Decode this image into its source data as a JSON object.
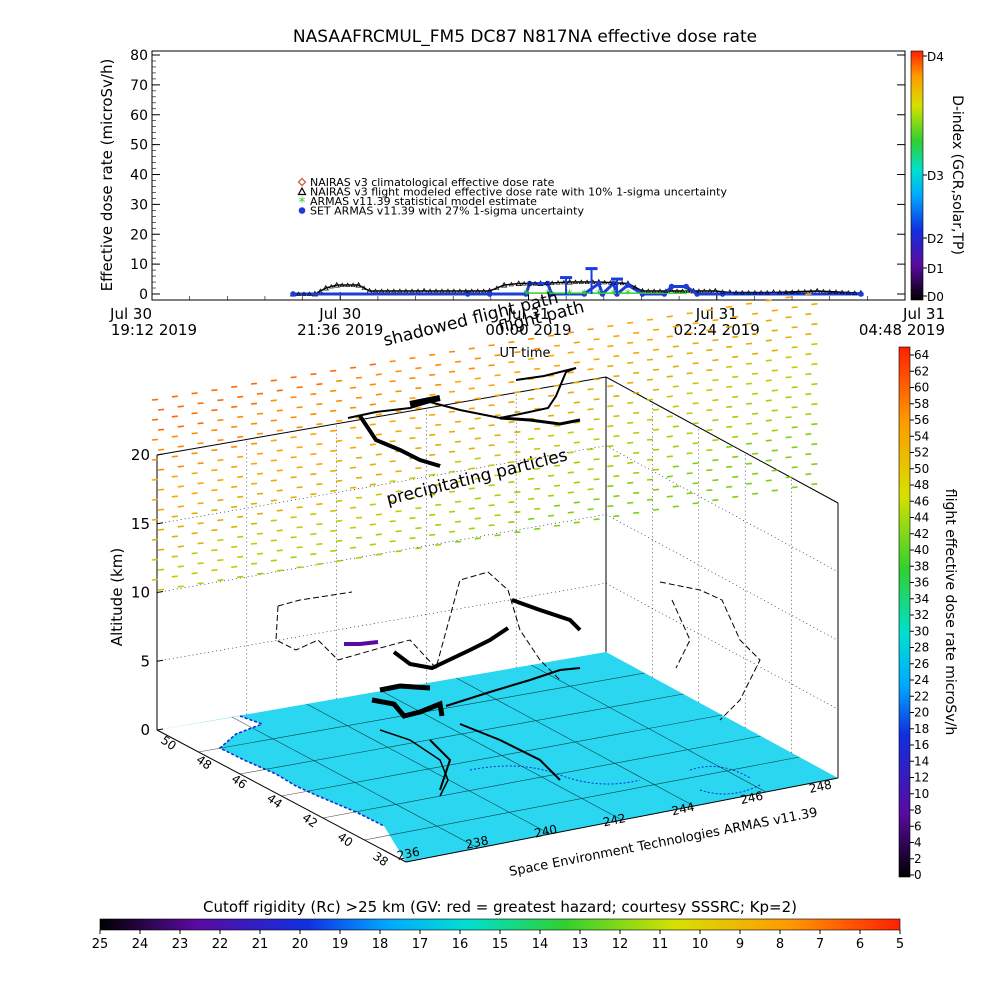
{
  "colors": {
    "nairas_climatological": "#d24a3a",
    "nairas_flight": "#000000",
    "armas_statistical": "#33cc33",
    "set_armas": "#1a3cd8",
    "map_ocean": "#2ad6f0",
    "map_land": "#ffffff"
  },
  "chart_data": [
    {
      "type": "line",
      "title": "NASAAFRCMUL_FM5 DC87 N817NA effective dose rate",
      "ylabel": "Effective dose rate (microSv/h)",
      "xlabel": "UT time",
      "ylim": [
        0,
        80
      ],
      "yticks": [
        "0",
        "10",
        "20",
        "30",
        "40",
        "50",
        "60",
        "70",
        "80"
      ],
      "xticks": [
        {
          "t": 0.0,
          "line1": "Jul 30",
          "line2": "19:12 2019"
        },
        {
          "t": 0.25,
          "line1": "Jul 30",
          "line2": "21:36 2019"
        },
        {
          "t": 0.5,
          "line1": "Jul 31",
          "line2": "00:00 2019"
        },
        {
          "t": 0.75,
          "line1": "Jul 31",
          "line2": "02:24 2019"
        },
        {
          "t": 1.0,
          "line1": "Jul 31",
          "line2": "04:48 2019"
        }
      ],
      "legend": [
        {
          "symbol": "diamond",
          "color_key": "nairas_climatological",
          "text": "NAIRAS v3 climatological effective dose rate"
        },
        {
          "symbol": "triangle",
          "color_key": "nairas_flight",
          "text": "NAIRAS v3 flight modeled effective dose rate with 10% 1-sigma uncertainty"
        },
        {
          "symbol": "asterisk",
          "color_key": "armas_statistical",
          "text": "ARMAS v11.39 statistical model estimate"
        },
        {
          "symbol": "circle",
          "color_key": "set_armas",
          "text": "SET ARMAS v11.39 with 27% 1-sigma uncertainty"
        }
      ],
      "series": [
        {
          "name": "NAIRAS v3 flight modeled effective dose rate with 10% 1-sigma uncertainty",
          "color_key": "nairas_flight",
          "x_frac": [
            0.18,
            0.21,
            0.225,
            0.24,
            0.27,
            0.285,
            0.36,
            0.45,
            0.47,
            0.49,
            0.52,
            0.56,
            0.6,
            0.64,
            0.66,
            0.7,
            0.73,
            0.76,
            0.78,
            0.84,
            0.9,
            0.96
          ],
          "y": [
            0,
            0,
            2,
            3,
            3,
            1,
            1,
            1,
            3,
            3.5,
            3.5,
            4,
            4,
            3.5,
            1,
            1,
            1,
            1,
            0.5,
            0.5,
            1,
            0.3
          ]
        },
        {
          "name": "SET ARMAS v11.39 with 27% 1-sigma uncertainty",
          "color_key": "set_armas",
          "x_frac": [
            0.18,
            0.42,
            0.45,
            0.5,
            0.505,
            0.53,
            0.535,
            0.58,
            0.6,
            0.605,
            0.62,
            0.625,
            0.64,
            0.66,
            0.69,
            0.7,
            0.72,
            0.735,
            0.77,
            0.96
          ],
          "y": [
            0,
            0,
            0,
            0,
            3.5,
            3.5,
            0,
            0,
            3.5,
            0,
            3.5,
            0,
            3,
            0,
            0,
            2.5,
            2.5,
            0,
            0,
            0
          ]
        },
        {
          "name": "ARMAS v11.39 statistical model estimate",
          "color_key": "armas_statistical",
          "x_frac": [
            0.5,
            0.53,
            0.56,
            0.58,
            0.6,
            0.62,
            0.64,
            0.72
          ],
          "y": [
            0.3,
            0.3,
            0.3,
            0.3,
            0.3,
            0.3,
            0.3,
            0.3
          ]
        }
      ],
      "errorbars": [
        {
          "x_frac": 0.59,
          "y": 8.5
        },
        {
          "x_frac": 0.555,
          "y": 5.5
        },
        {
          "x_frac": 0.625,
          "y": 5
        }
      ]
    },
    {
      "type": "scatter",
      "ylabel": "Altitude (km)",
      "zticks": [
        "0",
        "5",
        "10",
        "15",
        "20"
      ],
      "lat_ticks": [
        "50",
        "48",
        "46",
        "44",
        "42",
        "40",
        "38"
      ],
      "lon_ticks": [
        "236",
        "238",
        "240",
        "242",
        "244",
        "246",
        "248"
      ],
      "annotations": {
        "shadowed": "shadowed flight path",
        "flight": "flight path",
        "precip": "precipitating particles",
        "credit": "Space Environment Technologies ARMAS v11.39"
      }
    }
  ],
  "dindex": {
    "label": "D-index (GCR,solar,TP)",
    "ticks": [
      "D0",
      "D1",
      "D2",
      "D3",
      "D4"
    ]
  },
  "dose_colorbar": {
    "label": "flight effective dose rate microSv/h",
    "ticks": [
      "0",
      "2",
      "4",
      "6",
      "8",
      "10",
      "12",
      "14",
      "16",
      "18",
      "20",
      "22",
      "24",
      "26",
      "28",
      "30",
      "32",
      "34",
      "36",
      "38",
      "40",
      "42",
      "44",
      "46",
      "48",
      "50",
      "52",
      "54",
      "56",
      "58",
      "60",
      "62",
      "64"
    ]
  },
  "rc_colorbar": {
    "title": "Cutoff rigidity (Rc) >25 km (GV: red = greatest hazard; courtesy SSSRC; Kp=2)",
    "ticks": [
      "25",
      "24",
      "23",
      "22",
      "21",
      "20",
      "19",
      "18",
      "17",
      "16",
      "15",
      "14",
      "13",
      "12",
      "11",
      "10",
      "9",
      "8",
      "7",
      "6",
      "5"
    ]
  }
}
